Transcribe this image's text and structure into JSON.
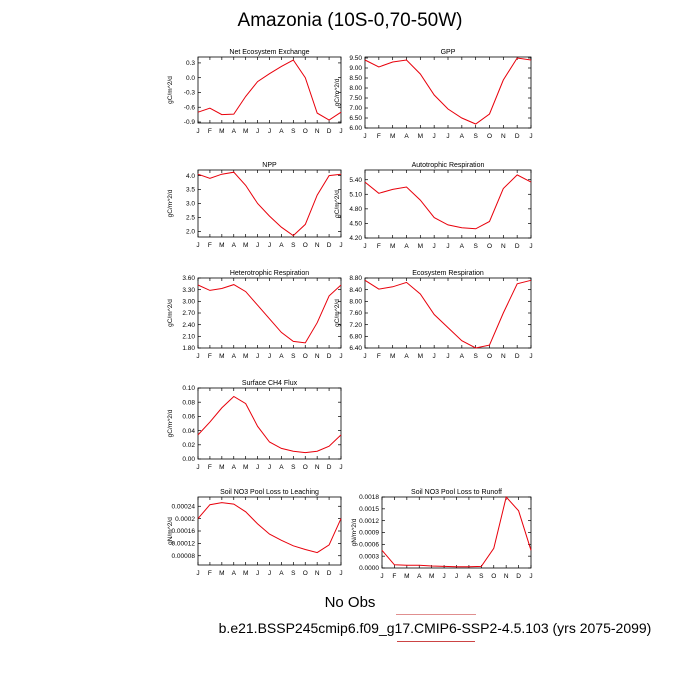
{
  "title": "Amazonia (10S-0,70-50W)",
  "legend": {
    "no_obs": "No Obs"
  },
  "footer": "b.e21.BSSP245cmip6.f09_g17.CMIP6-SSP2-4.5.103 (yrs 2075-2099)",
  "colors": {
    "series": "#e8000b",
    "axis": "#000000"
  },
  "chart_data": [
    {
      "type": "line",
      "title": "Net Ecosystem Exchange",
      "ylabel": "gC/m^2/d",
      "x": [
        "J",
        "F",
        "M",
        "A",
        "M",
        "J",
        "J",
        "A",
        "S",
        "O",
        "N",
        "D",
        "J"
      ],
      "values": [
        -0.7,
        -0.62,
        -0.75,
        -0.74,
        -0.38,
        -0.08,
        0.08,
        0.23,
        0.36,
        0.0,
        -0.72,
        -0.86,
        -0.7
      ],
      "ylim": [
        -0.92,
        0.42
      ],
      "yticks": [
        -0.9,
        -0.6,
        -0.3,
        0.0,
        0.3
      ],
      "yticklabels": [
        "-0.9",
        "-0.6",
        "-0.3",
        "0.0",
        "0.3"
      ]
    },
    {
      "type": "line",
      "title": "GPP",
      "ylabel": "gC/m^2/d",
      "x": [
        "J",
        "F",
        "M",
        "A",
        "M",
        "J",
        "J",
        "A",
        "S",
        "O",
        "N",
        "D",
        "J"
      ],
      "values": [
        9.4,
        9.05,
        9.3,
        9.4,
        8.7,
        7.65,
        6.95,
        6.5,
        6.2,
        6.7,
        8.4,
        9.5,
        9.4
      ],
      "ylim": [
        6.0,
        9.55
      ],
      "yticks": [
        6.0,
        6.5,
        7.0,
        7.5,
        8.0,
        8.5,
        9.0,
        9.5
      ],
      "yticklabels": [
        "6.00",
        "6.50",
        "7.00",
        "7.50",
        "8.00",
        "8.50",
        "9.00",
        "9.50"
      ]
    },
    {
      "type": "line",
      "title": "NPP",
      "ylabel": "gC/m^2/d",
      "x": [
        "J",
        "F",
        "M",
        "A",
        "M",
        "J",
        "J",
        "A",
        "S",
        "O",
        "N",
        "D",
        "J"
      ],
      "values": [
        4.05,
        3.9,
        4.05,
        4.12,
        3.65,
        3.0,
        2.55,
        2.15,
        1.85,
        2.25,
        3.3,
        4.0,
        4.05
      ],
      "ylim": [
        1.8,
        4.2
      ],
      "yticks": [
        2.0,
        2.5,
        3.0,
        3.5,
        4.0
      ],
      "yticklabels": [
        "2.0",
        "2.5",
        "3.0",
        "3.5",
        "4.0"
      ]
    },
    {
      "type": "line",
      "title": "Autotrophic Respiration",
      "ylabel": "gC/m^2/d",
      "x": [
        "J",
        "F",
        "M",
        "A",
        "M",
        "J",
        "J",
        "A",
        "S",
        "O",
        "N",
        "D",
        "J"
      ],
      "values": [
        5.35,
        5.12,
        5.2,
        5.25,
        4.98,
        4.62,
        4.47,
        4.41,
        4.39,
        4.54,
        5.22,
        5.5,
        5.35
      ],
      "ylim": [
        4.2,
        5.6
      ],
      "yticks": [
        4.2,
        4.5,
        4.8,
        5.1,
        5.4
      ],
      "yticklabels": [
        "4.20",
        "4.50",
        "4.80",
        "5.10",
        "5.40"
      ]
    },
    {
      "type": "line",
      "title": "Heterotrophic Respiration",
      "ylabel": "gC/m^2/d",
      "x": [
        "J",
        "F",
        "M",
        "A",
        "M",
        "J",
        "J",
        "A",
        "S",
        "O",
        "N",
        "D",
        "J"
      ],
      "values": [
        3.42,
        3.28,
        3.33,
        3.43,
        3.25,
        2.9,
        2.55,
        2.2,
        1.97,
        1.93,
        2.45,
        3.14,
        3.42
      ],
      "ylim": [
        1.8,
        3.6
      ],
      "yticks": [
        1.8,
        2.1,
        2.4,
        2.7,
        3.0,
        3.3,
        3.6
      ],
      "yticklabels": [
        "1.80",
        "2.10",
        "2.40",
        "2.70",
        "3.00",
        "3.30",
        "3.60"
      ]
    },
    {
      "type": "line",
      "title": "Ecosystem Respiration",
      "ylabel": "gC/m^2/d",
      "x": [
        "J",
        "F",
        "M",
        "A",
        "M",
        "J",
        "J",
        "A",
        "S",
        "O",
        "N",
        "D",
        "J"
      ],
      "values": [
        8.72,
        8.42,
        8.5,
        8.65,
        8.25,
        7.55,
        7.1,
        6.65,
        6.4,
        6.5,
        7.6,
        8.6,
        8.72
      ],
      "ylim": [
        6.4,
        8.8
      ],
      "yticks": [
        6.4,
        6.8,
        7.2,
        7.6,
        8.0,
        8.4,
        8.8
      ],
      "yticklabels": [
        "6.40",
        "6.80",
        "7.20",
        "7.60",
        "8.00",
        "8.40",
        "8.80"
      ]
    },
    {
      "type": "line",
      "title": "Surface CH4 Flux",
      "ylabel": "gC/m^2/d",
      "x": [
        "J",
        "F",
        "M",
        "A",
        "M",
        "J",
        "J",
        "A",
        "S",
        "O",
        "N",
        "D",
        "J"
      ],
      "values": [
        0.034,
        0.052,
        0.072,
        0.088,
        0.078,
        0.046,
        0.024,
        0.015,
        0.011,
        0.009,
        0.011,
        0.018,
        0.034
      ],
      "ylim": [
        0.0,
        0.1
      ],
      "yticks": [
        0.0,
        0.02,
        0.04,
        0.06,
        0.08,
        0.1
      ],
      "yticklabels": [
        "0.00",
        "0.02",
        "0.04",
        "0.06",
        "0.08",
        "0.10"
      ]
    },
    {
      "type": "line",
      "title": "Soil NO3 Pool Loss to Leaching",
      "ylabel": "gN/m^2/d",
      "x": [
        "J",
        "F",
        "M",
        "A",
        "M",
        "J",
        "J",
        "A",
        "S",
        "O",
        "N",
        "D",
        "J"
      ],
      "values": [
        0.0002,
        0.000245,
        0.000252,
        0.000247,
        0.000222,
        0.000183,
        0.00015,
        0.00013,
        0.000112,
        0.0001,
        9e-05,
        0.000115,
        0.0002
      ],
      "ylim": [
        5e-05,
        0.00027
      ],
      "yticks": [
        8e-05,
        0.00012,
        0.00016,
        0.0002,
        0.00024
      ],
      "yticklabels": [
        "0.00008",
        "0.00012",
        "0.00016",
        "0.0002",
        "0.00024"
      ]
    },
    {
      "type": "line",
      "title": "Soil NO3 Pool Loss to Runoff",
      "ylabel": "gN/m^2/d",
      "x": [
        "J",
        "F",
        "M",
        "A",
        "M",
        "J",
        "J",
        "A",
        "S",
        "O",
        "N",
        "D",
        "J"
      ],
      "values": [
        0.00045,
        8e-05,
        7e-05,
        7e-05,
        5e-05,
        4e-05,
        3e-05,
        3e-05,
        4e-05,
        0.0005,
        0.0018,
        0.00145,
        0.00045
      ],
      "ylim": [
        0.0,
        0.0018
      ],
      "yticks": [
        0.0,
        0.0003,
        0.0006,
        0.0009,
        0.0012,
        0.0015,
        0.0018
      ],
      "yticklabels": [
        "0.0000",
        "0.0003",
        "0.0006",
        "0.0009",
        "0.0012",
        "0.0015",
        "0.0018"
      ]
    }
  ]
}
